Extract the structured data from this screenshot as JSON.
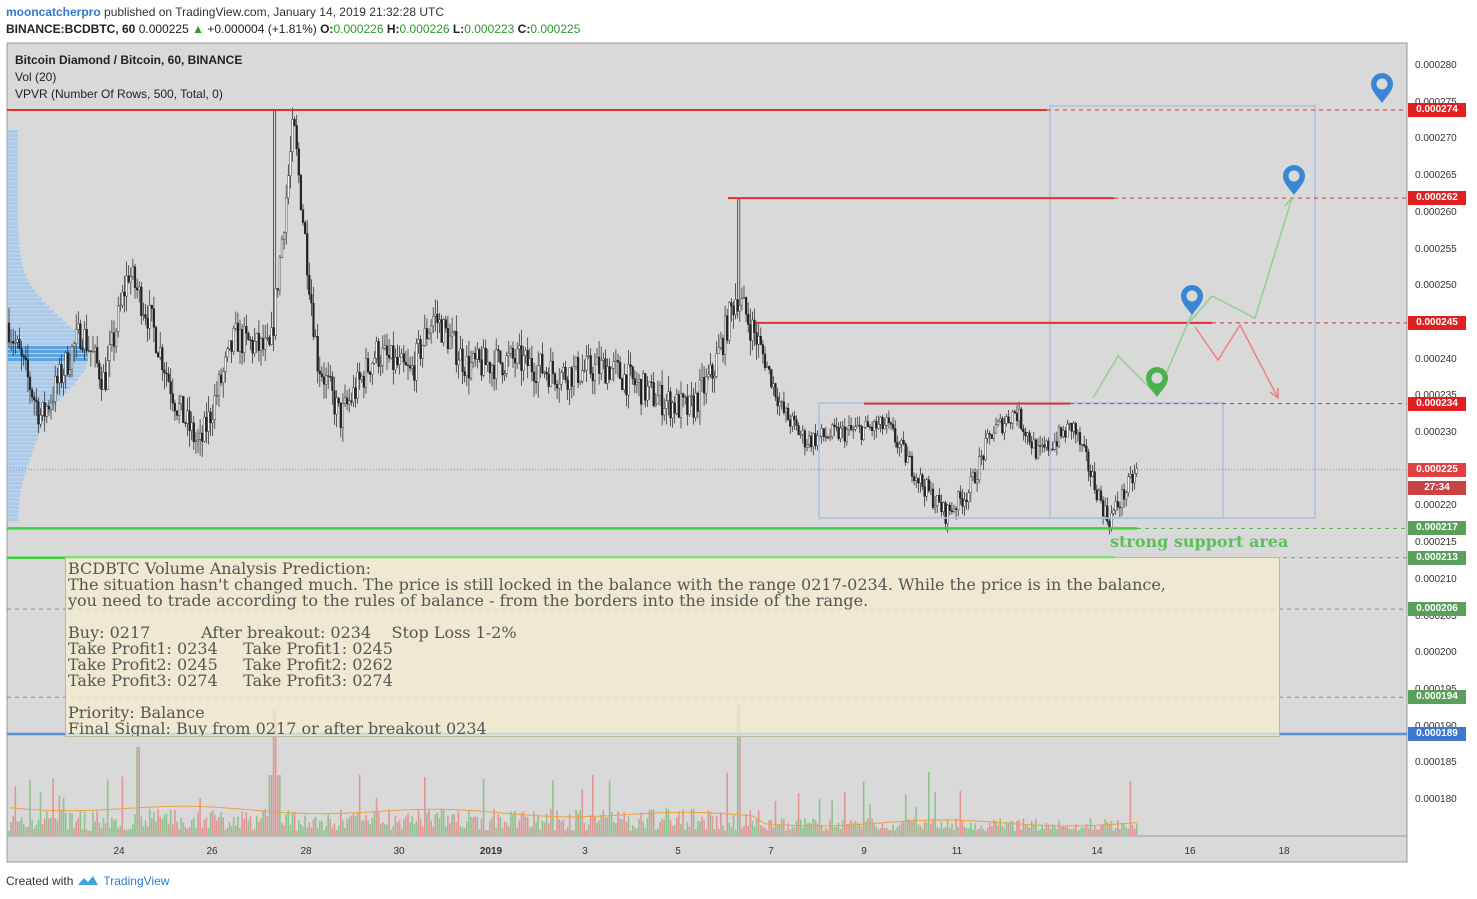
{
  "header": {
    "author": "mooncatcherpro",
    "published": " published on TradingView.com, January 14, 2019 21:32:28 UTC",
    "symbol": "BINANCE:BCDBTC, 60",
    "last": "0.000225",
    "change": "+0.000004 (+1.81%)",
    "o_label": "O:",
    "o_value": "0.000226",
    "h_label": "H:",
    "h_value": "0.000226",
    "l_label": "L:",
    "l_value": "0.000223",
    "c_label": "C:",
    "c_value": "0.000225"
  },
  "legend": {
    "title": "Bitcoin Diamond / Bitcoin, 60, BINANCE",
    "vol": "Vol (20)",
    "vpvr": "VPVR (Number Of Rows, 500, Total, 0)"
  },
  "note": {
    "line1": "BCDBTC Volume Analysis Prediction:",
    "line2": "The situation hasn't changed much. The price is still locked in the balance with the range 0217-0234. While the price is in the balance,",
    "line3": "you need to trade according to the rules of balance - from the borders into the inside of the range.",
    "line4": "Buy: 0217          After breakout: 0234    Stop Loss 1-2%",
    "line5": "Take Profit1: 0234     Take Profit1: 0245",
    "line6": "Take Profit2: 0245     Take Profit2: 0262",
    "line7": "Take Profit3: 0274     Take Profit3: 0274",
    "line8": "Priority: Balance",
    "line9": "Final Signal: Buy from 0217 or after breakout 0234"
  },
  "support_label": "strong support area",
  "countdown": "27:34",
  "footer": {
    "created": "Created with",
    "brand": "TradingView"
  },
  "colors": {
    "bull": "#f7f7f7",
    "bear": "#222222",
    "resistance": "#e03030",
    "support": "#3ad23a",
    "forecast_up": "#8fd08f",
    "forecast_down": "#f08080",
    "marker_blue": "#3b86d4",
    "marker_green": "#4caf50",
    "box": "#a9c0e0"
  },
  "chart_data": {
    "type": "candlestick",
    "ylim": [
      0.000175,
      0.000283
    ],
    "y_ticks": [
      "0.000280",
      "0.000275",
      "0.000270",
      "0.000265",
      "0.000260",
      "0.000255",
      "0.000250",
      "0.000245",
      "0.000240",
      "0.000235",
      "0.000230",
      "0.000225",
      "0.000220",
      "0.000215",
      "0.000210",
      "0.000205",
      "0.000200",
      "0.000195",
      "0.000190",
      "0.000185",
      "0.000180"
    ],
    "x_ticks": [
      "24",
      "26",
      "28",
      "30",
      "2019",
      "3",
      "5",
      "7",
      "9",
      "11",
      "14",
      "16",
      "18"
    ],
    "price_path": [
      [
        "Dec 22",
        0.000245
      ],
      [
        "Dec 22",
        0.000232
      ],
      [
        "Dec 23",
        0.000244
      ],
      [
        "Dec 23",
        0.000237
      ],
      [
        "Dec 24",
        0.000252
      ],
      [
        "Dec 24",
        0.000245
      ],
      [
        "Dec 25",
        0.000234
      ],
      [
        "Dec 25",
        0.000228
      ],
      [
        "Dec 26",
        0.000243
      ],
      [
        "Dec 27",
        0.000241
      ],
      [
        "Dec 27",
        0.000272
      ],
      [
        "Dec 28",
        0.00024
      ],
      [
        "Dec 28",
        0.000232
      ],
      [
        "Dec 29",
        0.000241
      ],
      [
        "Dec 30",
        0.000238
      ],
      [
        "Dec 30",
        0.000246
      ],
      [
        "Dec 31",
        0.000239
      ],
      [
        "Jan 1",
        0.00024
      ],
      [
        "Jan 2",
        0.000238
      ],
      [
        "Jan 3",
        0.000239
      ],
      [
        "Jan 4",
        0.000235
      ],
      [
        "Jan 5",
        0.000233
      ],
      [
        "Jan 5",
        0.000238
      ],
      [
        "Jan 6",
        0.000249
      ],
      [
        "Jan 6",
        0.000242
      ],
      [
        "Jan 7",
        0.000233
      ],
      [
        "Jan 7",
        0.000229
      ],
      [
        "Jan 8",
        0.00023
      ],
      [
        "Jan 9",
        0.000231
      ],
      [
        "Jan 10",
        0.000223
      ],
      [
        "Jan 10",
        0.000219
      ],
      [
        "Jan 11",
        0.000222
      ],
      [
        "Jan 11",
        0.00023
      ],
      [
        "Jan 12",
        0.000233
      ],
      [
        "Jan 12",
        0.000227
      ],
      [
        "Jan 13",
        0.000231
      ],
      [
        "Jan 14",
        0.000218
      ],
      [
        "Jan 14",
        0.000225
      ]
    ],
    "price_levels": [
      {
        "label": "0.000274",
        "kind": "resistance"
      },
      {
        "label": "0.000262",
        "kind": "resistance"
      },
      {
        "label": "0.000245",
        "kind": "resistance"
      },
      {
        "label": "0.000234",
        "kind": "resistance"
      },
      {
        "label": "0.000225",
        "kind": "last"
      },
      {
        "label": "0.000217",
        "kind": "support"
      },
      {
        "label": "0.000213",
        "kind": "support"
      },
      {
        "label": "0.000206",
        "kind": "support"
      },
      {
        "label": "0.000194",
        "kind": "support"
      },
      {
        "label": "0.000189",
        "kind": "blue"
      }
    ],
    "annotations": [
      "strong support area"
    ]
  }
}
